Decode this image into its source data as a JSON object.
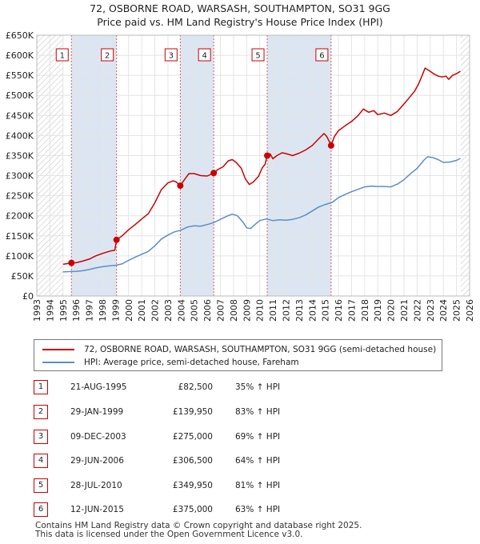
{
  "header": {
    "title_line1": "72, OSBORNE ROAD, WARSASH, SOUTHAMPTON, SO31 9GG",
    "title_line2": "Price paid vs. HM Land Registry's House Price Index (HPI)"
  },
  "colors": {
    "property": "#cc0000",
    "hpi": "#5b8ec8",
    "shade": "#dce6f2",
    "grid": "#e4e4e4",
    "marker_line": "#d46060"
  },
  "chart_data": {
    "type": "line",
    "xlim": [
      1993,
      2026
    ],
    "ylim": [
      0,
      650000
    ],
    "y_ticks": [
      {
        "value": 0,
        "label": "£0"
      },
      {
        "value": 50000,
        "label": "£50K"
      },
      {
        "value": 100000,
        "label": "£100K"
      },
      {
        "value": 150000,
        "label": "£150K"
      },
      {
        "value": 200000,
        "label": "£200K"
      },
      {
        "value": 250000,
        "label": "£250K"
      },
      {
        "value": 300000,
        "label": "£300K"
      },
      {
        "value": 350000,
        "label": "£350K"
      },
      {
        "value": 400000,
        "label": "£400K"
      },
      {
        "value": 450000,
        "label": "£450K"
      },
      {
        "value": 500000,
        "label": "£500K"
      },
      {
        "value": 550000,
        "label": "£550K"
      },
      {
        "value": 600000,
        "label": "£600K"
      },
      {
        "value": 650000,
        "label": "£650K"
      }
    ],
    "x_ticks": [
      "1993",
      "1994",
      "1995",
      "1996",
      "1997",
      "1998",
      "1999",
      "2000",
      "2001",
      "2002",
      "2003",
      "2004",
      "2005",
      "2006",
      "2007",
      "2008",
      "2009",
      "2010",
      "2011",
      "2012",
      "2013",
      "2014",
      "2015",
      "2016",
      "2017",
      "2018",
      "2019",
      "2020",
      "2021",
      "2022",
      "2023",
      "2024",
      "2025",
      "2026"
    ],
    "series": [
      {
        "name": "72, OSBORNE ROAD, WARSASH, SOUTHAMPTON, SO31 9GG (semi-detached house)",
        "color": "#cc0000",
        "points": [
          [
            1995.0,
            79000
          ],
          [
            1995.64,
            82500
          ],
          [
            1996.0,
            83000
          ],
          [
            1996.5,
            87000
          ],
          [
            1997.0,
            92000
          ],
          [
            1997.5,
            100000
          ],
          [
            1998.0,
            106000
          ],
          [
            1998.6,
            112000
          ],
          [
            1998.95,
            114000
          ],
          [
            1999.08,
            139950
          ],
          [
            1999.5,
            150000
          ],
          [
            2000.0,
            165000
          ],
          [
            2000.5,
            178000
          ],
          [
            2001.0,
            192000
          ],
          [
            2001.5,
            205000
          ],
          [
            2002.0,
            232000
          ],
          [
            2002.5,
            265000
          ],
          [
            2003.0,
            282000
          ],
          [
            2003.4,
            287000
          ],
          [
            2003.6,
            285000
          ],
          [
            2003.94,
            275000
          ],
          [
            2004.3,
            292000
          ],
          [
            2004.6,
            305000
          ],
          [
            2005.0,
            305000
          ],
          [
            2005.5,
            300000
          ],
          [
            2006.0,
            299000
          ],
          [
            2006.49,
            306500
          ],
          [
            2006.8,
            315000
          ],
          [
            2007.2,
            322000
          ],
          [
            2007.6,
            337000
          ],
          [
            2007.9,
            340000
          ],
          [
            2008.2,
            333000
          ],
          [
            2008.6,
            318000
          ],
          [
            2008.9,
            292000
          ],
          [
            2009.2,
            278000
          ],
          [
            2009.5,
            284000
          ],
          [
            2009.9,
            298000
          ],
          [
            2010.2,
            320000
          ],
          [
            2010.4,
            328000
          ],
          [
            2010.57,
            349950
          ],
          [
            2010.8,
            354000
          ],
          [
            2011.0,
            342000
          ],
          [
            2011.3,
            350000
          ],
          [
            2011.7,
            357000
          ],
          [
            2012.0,
            355000
          ],
          [
            2012.5,
            350000
          ],
          [
            2013.0,
            356000
          ],
          [
            2013.5,
            364000
          ],
          [
            2014.0,
            375000
          ],
          [
            2014.5,
            392000
          ],
          [
            2014.9,
            405000
          ],
          [
            2015.1,
            398000
          ],
          [
            2015.3,
            385000
          ],
          [
            2015.44,
            375000
          ],
          [
            2015.7,
            398000
          ],
          [
            2016.0,
            412000
          ],
          [
            2016.5,
            424000
          ],
          [
            2017.0,
            435000
          ],
          [
            2017.5,
            450000
          ],
          [
            2017.9,
            466000
          ],
          [
            2018.3,
            458000
          ],
          [
            2018.7,
            462000
          ],
          [
            2019.0,
            452000
          ],
          [
            2019.5,
            456000
          ],
          [
            2020.0,
            450000
          ],
          [
            2020.5,
            460000
          ],
          [
            2020.9,
            475000
          ],
          [
            2021.3,
            490000
          ],
          [
            2021.8,
            510000
          ],
          [
            2022.1,
            528000
          ],
          [
            2022.4,
            551000
          ],
          [
            2022.6,
            568000
          ],
          [
            2022.9,
            562000
          ],
          [
            2023.3,
            553000
          ],
          [
            2023.6,
            548000
          ],
          [
            2023.9,
            546000
          ],
          [
            2024.2,
            548000
          ],
          [
            2024.4,
            540000
          ],
          [
            2024.7,
            550000
          ],
          [
            2025.0,
            554000
          ],
          [
            2025.3,
            560000
          ]
        ]
      },
      {
        "name": "HPI: Average price, semi-detached house, Fareham",
        "color": "#5b8ec8",
        "points": [
          [
            1995.0,
            60000
          ],
          [
            1995.6,
            61000
          ],
          [
            1996.0,
            61500
          ],
          [
            1996.5,
            63000
          ],
          [
            1997.0,
            66000
          ],
          [
            1997.5,
            70000
          ],
          [
            1998.0,
            73000
          ],
          [
            1998.5,
            75000
          ],
          [
            1999.0,
            76500
          ],
          [
            1999.5,
            80000
          ],
          [
            2000.0,
            89000
          ],
          [
            2000.5,
            97000
          ],
          [
            2001.0,
            104000
          ],
          [
            2001.5,
            111000
          ],
          [
            2002.0,
            125000
          ],
          [
            2002.5,
            142000
          ],
          [
            2003.0,
            152000
          ],
          [
            2003.5,
            160000
          ],
          [
            2004.0,
            164000
          ],
          [
            2004.5,
            172000
          ],
          [
            2005.0,
            175000
          ],
          [
            2005.5,
            174000
          ],
          [
            2006.0,
            178000
          ],
          [
            2006.5,
            183000
          ],
          [
            2007.0,
            191000
          ],
          [
            2007.5,
            199000
          ],
          [
            2007.9,
            204000
          ],
          [
            2008.3,
            200000
          ],
          [
            2008.7,
            185000
          ],
          [
            2009.0,
            170000
          ],
          [
            2009.3,
            168000
          ],
          [
            2009.7,
            180000
          ],
          [
            2010.0,
            188000
          ],
          [
            2010.5,
            192000
          ],
          [
            2011.0,
            188000
          ],
          [
            2011.5,
            190000
          ],
          [
            2012.0,
            189000
          ],
          [
            2012.5,
            191000
          ],
          [
            2013.0,
            195000
          ],
          [
            2013.5,
            202000
          ],
          [
            2014.0,
            212000
          ],
          [
            2014.5,
            222000
          ],
          [
            2015.0,
            228000
          ],
          [
            2015.5,
            233000
          ],
          [
            2016.0,
            245000
          ],
          [
            2016.5,
            253000
          ],
          [
            2017.0,
            260000
          ],
          [
            2017.5,
            266000
          ],
          [
            2018.0,
            272000
          ],
          [
            2018.5,
            274000
          ],
          [
            2019.0,
            273000
          ],
          [
            2019.5,
            273000
          ],
          [
            2020.0,
            272000
          ],
          [
            2020.5,
            279000
          ],
          [
            2021.0,
            290000
          ],
          [
            2021.5,
            305000
          ],
          [
            2022.0,
            318000
          ],
          [
            2022.5,
            338000
          ],
          [
            2022.8,
            347000
          ],
          [
            2023.2,
            345000
          ],
          [
            2023.6,
            340000
          ],
          [
            2024.0,
            333000
          ],
          [
            2024.5,
            334000
          ],
          [
            2025.0,
            338000
          ],
          [
            2025.3,
            343000
          ]
        ]
      }
    ],
    "sales": [
      {
        "label": "1",
        "x": 1995.64,
        "y": 82500
      },
      {
        "label": "2",
        "x": 1999.08,
        "y": 139950
      },
      {
        "label": "3",
        "x": 2003.94,
        "y": 275000
      },
      {
        "label": "4",
        "x": 2006.49,
        "y": 306500
      },
      {
        "label": "5",
        "x": 2010.57,
        "y": 349950
      },
      {
        "label": "6",
        "x": 2015.44,
        "y": 375000
      }
    ],
    "shaded_ranges": [
      [
        1995.64,
        1999.08
      ],
      [
        2003.94,
        2006.49
      ],
      [
        2010.57,
        2015.44
      ]
    ],
    "hatched_ranges": [
      [
        1993,
        1995.0
      ],
      [
        2025.3,
        2026
      ]
    ],
    "grid": true,
    "legend_placement": "below"
  },
  "legend": {
    "property_label": "72, OSBORNE ROAD, WARSASH, SOUTHAMPTON, SO31 9GG (semi-detached house)",
    "hpi_label": "HPI: Average price, semi-detached house, Fareham"
  },
  "sales_table": [
    {
      "num": "1",
      "date": "21-AUG-1995",
      "price": "£82,500",
      "hpi": "35% ↑ HPI"
    },
    {
      "num": "2",
      "date": "29-JAN-1999",
      "price": "£139,950",
      "hpi": "83% ↑ HPI"
    },
    {
      "num": "3",
      "date": "09-DEC-2003",
      "price": "£275,000",
      "hpi": "69% ↑ HPI"
    },
    {
      "num": "4",
      "date": "29-JUN-2006",
      "price": "£306,500",
      "hpi": "64% ↑ HPI"
    },
    {
      "num": "5",
      "date": "28-JUL-2010",
      "price": "£349,950",
      "hpi": "81% ↑ HPI"
    },
    {
      "num": "6",
      "date": "12-JUN-2015",
      "price": "£375,000",
      "hpi": "63% ↑ HPI"
    }
  ],
  "footer": {
    "line1": "Contains HM Land Registry data © Crown copyright and database right 2025.",
    "line2": "This data is licensed under the Open Government Licence v3.0."
  }
}
